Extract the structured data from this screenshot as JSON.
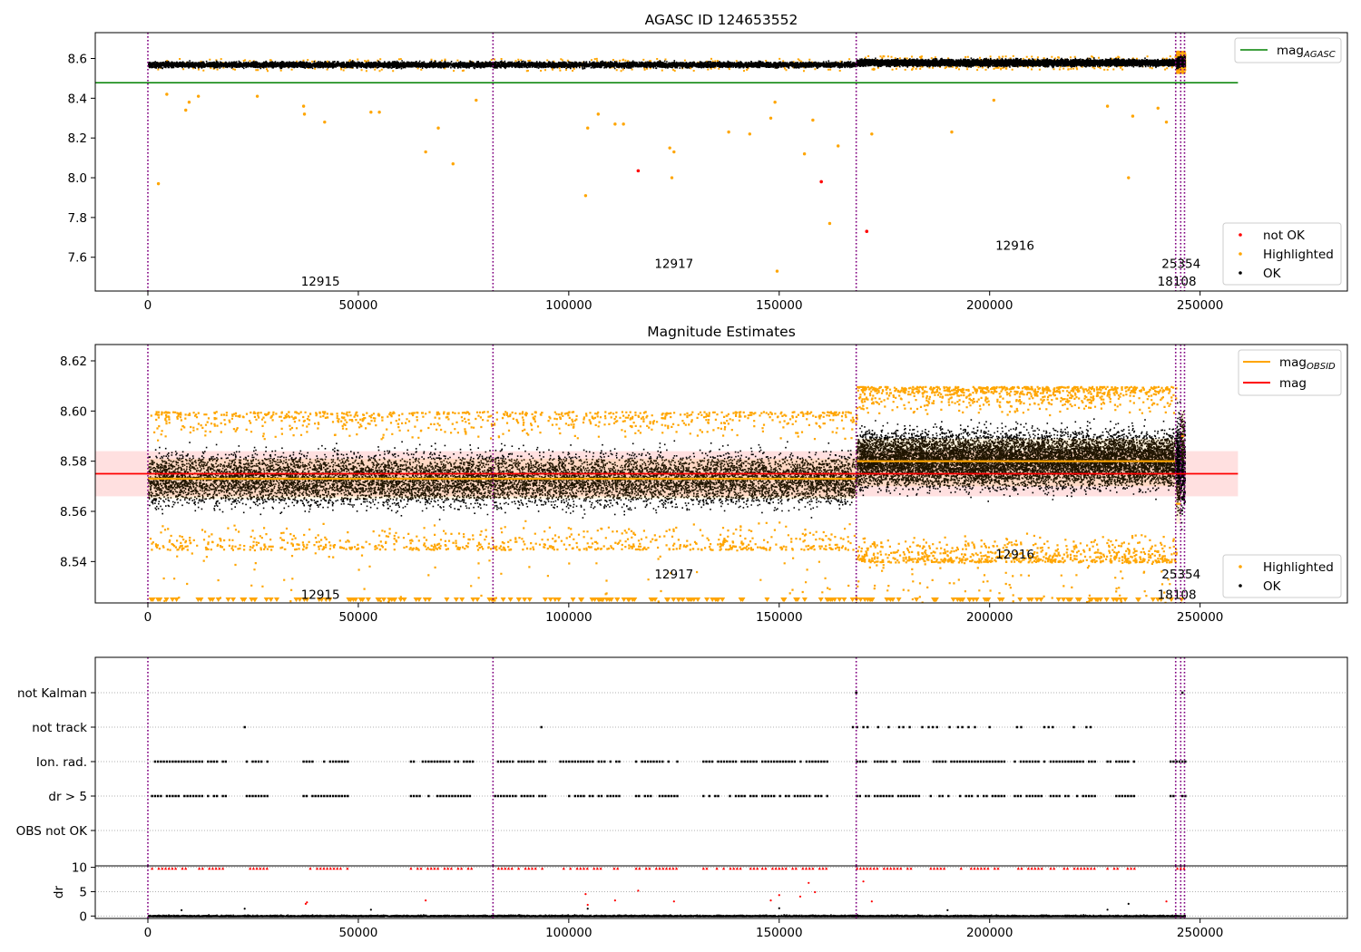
{
  "chart_data": [
    {
      "id": "top",
      "type": "scatter",
      "title": "AGASC ID 124653552",
      "xlabel": "",
      "ylabel": "",
      "xlim": [
        -12500,
        285000
      ],
      "ylim": [
        7.43,
        8.73
      ],
      "xticks": [
        0,
        50000,
        100000,
        150000,
        200000,
        250000
      ],
      "yticks": [
        7.6,
        7.8,
        8.0,
        8.2,
        8.4,
        8.6
      ],
      "ytick_labels": [
        "7.6",
        "7.8",
        "8.0",
        "8.2",
        "8.4",
        "8.6"
      ],
      "obs_boundaries": [
        0,
        82000,
        168300,
        244200,
        245400,
        246300
      ],
      "obs_labels": [
        {
          "text": "12915",
          "x": 41000,
          "y": 7.48
        },
        {
          "text": "12917",
          "x": 125000,
          "y": 7.57
        },
        {
          "text": "12916",
          "x": 206000,
          "y": 7.66
        },
        {
          "text": "25354",
          "x": 245500,
          "y": 7.57
        },
        {
          "text": "18108",
          "x": 244500,
          "y": 7.48
        }
      ],
      "agasc_mag": {
        "value": 8.478,
        "x_range": [
          -12500,
          259000
        ]
      },
      "ok_band": [
        {
          "x": [
            0,
            168300
          ],
          "center": 8.572,
          "spread": 0.028
        },
        {
          "x": [
            168300,
            244200
          ],
          "center": 8.582,
          "spread": 0.032
        },
        {
          "x": [
            244200,
            246300
          ],
          "center": 8.585,
          "spread": 0.05
        }
      ],
      "highlighted_points": [
        [
          2500,
          7.97
        ],
        [
          4500,
          8.42
        ],
        [
          9000,
          8.34
        ],
        [
          9800,
          8.38
        ],
        [
          12000,
          8.41
        ],
        [
          26000,
          8.41
        ],
        [
          37000,
          8.36
        ],
        [
          37200,
          8.32
        ],
        [
          42000,
          8.28
        ],
        [
          53000,
          8.33
        ],
        [
          55000,
          8.33
        ],
        [
          66000,
          8.13
        ],
        [
          69000,
          8.25
        ],
        [
          72500,
          8.07
        ],
        [
          78000,
          8.39
        ],
        [
          104000,
          7.91
        ],
        [
          104500,
          8.25
        ],
        [
          107000,
          8.32
        ],
        [
          111000,
          8.27
        ],
        [
          113000,
          8.27
        ],
        [
          124000,
          8.15
        ],
        [
          124500,
          8.0
        ],
        [
          125000,
          8.13
        ],
        [
          138000,
          8.23
        ],
        [
          143000,
          8.22
        ],
        [
          148000,
          8.3
        ],
        [
          149000,
          8.38
        ],
        [
          149500,
          7.53
        ],
        [
          156000,
          8.12
        ],
        [
          158000,
          8.29
        ],
        [
          162000,
          7.77
        ],
        [
          164000,
          8.16
        ],
        [
          172000,
          8.22
        ],
        [
          191000,
          8.23
        ],
        [
          201000,
          8.39
        ],
        [
          228000,
          8.36
        ],
        [
          233000,
          8.0
        ],
        [
          234000,
          8.31
        ],
        [
          240000,
          8.35
        ],
        [
          242000,
          8.28
        ]
      ],
      "not_ok_points": [
        [
          116500,
          8.035
        ],
        [
          160000,
          7.98
        ],
        [
          170800,
          7.73
        ]
      ],
      "legend_lines": [
        {
          "label": "mag",
          "subscript": "AGASC",
          "color": "#008000"
        }
      ],
      "legend_markers": [
        {
          "label": "not OK",
          "color": "#ff0000"
        },
        {
          "label": "Highlighted",
          "color": "#ffa500"
        },
        {
          "label": "OK",
          "color": "#000000"
        }
      ]
    },
    {
      "id": "mid",
      "type": "scatter",
      "title": "Magnitude Estimates",
      "xlabel": "",
      "ylabel": "",
      "xlim": [
        -12500,
        285000
      ],
      "ylim": [
        8.5235,
        8.6265
      ],
      "xticks": [
        0,
        50000,
        100000,
        150000,
        200000,
        250000
      ],
      "yticks": [
        8.54,
        8.56,
        8.58,
        8.6,
        8.62
      ],
      "ytick_labels": [
        "8.54",
        "8.56",
        "8.58",
        "8.60",
        "8.62"
      ],
      "obs_boundaries": [
        0,
        82000,
        168300,
        244200,
        245400,
        246300
      ],
      "obs_labels": [
        {
          "text": "12915",
          "x": 41000,
          "y": 8.527
        },
        {
          "text": "12917",
          "x": 125000,
          "y": 8.535
        },
        {
          "text": "12916",
          "x": 206000,
          "y": 8.543
        },
        {
          "text": "25354",
          "x": 245500,
          "y": 8.535
        },
        {
          "text": "18108",
          "x": 244500,
          "y": 8.527
        }
      ],
      "mag": {
        "value": 8.575,
        "band": [
          8.566,
          8.584
        ],
        "x_range": [
          -12500,
          259000
        ]
      },
      "obsid_mag": [
        {
          "x": [
            0,
            82000
          ],
          "value": 8.573,
          "band": [
            8.565,
            8.581
          ]
        },
        {
          "x": [
            82000,
            168300
          ],
          "value": 8.573,
          "band": [
            8.565,
            8.581
          ]
        },
        {
          "x": [
            168300,
            244200
          ],
          "value": 8.58,
          "band": [
            8.57,
            8.589
          ]
        },
        {
          "x": [
            244200,
            245400
          ],
          "value": 8.563,
          "band": [
            8.555,
            8.571
          ]
        },
        {
          "x": [
            245400,
            246300
          ],
          "value": 8.59,
          "band": [
            8.58,
            8.6
          ]
        }
      ],
      "ok_band": [
        {
          "x": [
            0,
            168300
          ],
          "center": 8.573,
          "spread": 0.021
        },
        {
          "x": [
            168300,
            244200
          ],
          "center": 8.581,
          "spread": 0.022
        },
        {
          "x": [
            244200,
            246300
          ],
          "center": 8.58,
          "spread": 0.037
        }
      ],
      "highlighted_spread": [
        {
          "x": [
            0,
            168300
          ],
          "lo": 8.545,
          "hi": 8.6
        },
        {
          "x": [
            168300,
            244200
          ],
          "lo": 8.54,
          "hi": 8.61
        }
      ],
      "legend_lines": [
        {
          "label": "mag",
          "subscript": "OBSID",
          "color": "#ffa500"
        },
        {
          "label": "mag",
          "subscript": "",
          "color": "#ff0000"
        }
      ],
      "legend_markers": [
        {
          "label": "Highlighted",
          "color": "#ffa500"
        },
        {
          "label": "OK",
          "color": "#000000"
        }
      ]
    },
    {
      "id": "flags",
      "type": "scatter",
      "xlabel": "",
      "ylabel": "",
      "xlim": [
        -12500,
        285000
      ],
      "categories": [
        "not Kalman",
        "not track",
        "Ion. rad.",
        "dr > 5",
        "OBS not OK"
      ],
      "obs_boundaries": [
        0,
        82000,
        168300,
        244200,
        245400,
        246300
      ],
      "flag_rows": [
        {
          "category": "not Kalman",
          "x": [
            168300,
            245800
          ]
        },
        {
          "category": "not track",
          "x": [
            23000,
            93500,
            167500,
            168500,
            170000,
            171000,
            173500,
            176000,
            178500,
            179500,
            181000,
            184000,
            185500,
            186500,
            187500,
            190500,
            192500,
            193500,
            195000,
            196500,
            200000,
            206500,
            207500,
            213000,
            214000,
            215000,
            220000,
            223000,
            224000
          ]
        },
        {
          "category": "Ion. rad.",
          "segments": [
            [
              1000,
              18500
            ],
            [
              23500,
              29000
            ],
            [
              37000,
              47500
            ],
            [
              62500,
              77500
            ],
            [
              82500,
              95000
            ],
            [
              98000,
              112000
            ],
            [
              116000,
              126000
            ],
            [
              132000,
              145000
            ],
            [
              146000,
              162000
            ],
            [
              168500,
              183500
            ],
            [
              186000,
              203500
            ],
            [
              206000,
              213000
            ],
            [
              214500,
              225500
            ],
            [
              228000,
              234500
            ],
            [
              243000,
              246500
            ]
          ]
        },
        {
          "category": "dr > 5",
          "segments": [
            [
              1000,
              18500
            ],
            [
              23500,
              29000
            ],
            [
              37000,
              47500
            ],
            [
              62500,
              77500
            ],
            [
              82500,
              95000
            ],
            [
              98000,
              112000
            ],
            [
              116000,
              126000
            ],
            [
              132000,
              145000
            ],
            [
              146000,
              162000
            ],
            [
              168500,
              183500
            ],
            [
              186000,
              203500
            ],
            [
              206000,
              213000
            ],
            [
              214500,
              225500
            ],
            [
              228000,
              234500
            ],
            [
              243000,
              246500
            ]
          ]
        }
      ]
    },
    {
      "id": "dr",
      "type": "scatter",
      "xlabel": "",
      "ylabel": "dr",
      "xlim": [
        -12500,
        285000
      ],
      "ylim": [
        -0.5,
        10.3
      ],
      "xticks": [
        0,
        50000,
        100000,
        150000,
        200000,
        250000
      ],
      "yticks": [
        0,
        5,
        10
      ],
      "ytick_labels": [
        "0",
        "5",
        "10"
      ],
      "obs_boundaries": [
        0,
        82000,
        168300,
        244200,
        245400,
        246300
      ],
      "clipped_segments": [
        [
          1000,
          18500
        ],
        [
          23500,
          29000
        ],
        [
          37000,
          47500
        ],
        [
          62500,
          77500
        ],
        [
          82500,
          95000
        ],
        [
          98000,
          112000
        ],
        [
          116000,
          126000
        ],
        [
          132000,
          145000
        ],
        [
          146000,
          162000
        ],
        [
          168500,
          183500
        ],
        [
          186000,
          203500
        ],
        [
          206000,
          213000
        ],
        [
          214500,
          225500
        ],
        [
          228000,
          234500
        ],
        [
          243000,
          246500
        ]
      ],
      "red_points": [
        [
          37500,
          2.5
        ],
        [
          37800,
          2.8
        ],
        [
          66000,
          3.2
        ],
        [
          104000,
          4.5
        ],
        [
          104500,
          2.3
        ],
        [
          111000,
          3.2
        ],
        [
          116500,
          5.2
        ],
        [
          125000,
          3.0
        ],
        [
          148000,
          3.2
        ],
        [
          150000,
          4.3
        ],
        [
          155000,
          4.0
        ],
        [
          157000,
          6.8
        ],
        [
          158500,
          4.9
        ],
        [
          170000,
          7.1
        ],
        [
          172000,
          3.0
        ],
        [
          242000,
          3.0
        ]
      ],
      "black_points": [
        [
          8000,
          1.2
        ],
        [
          23000,
          1.5
        ],
        [
          53000,
          1.3
        ],
        [
          104500,
          1.5
        ],
        [
          150000,
          1.6
        ],
        [
          190000,
          1.2
        ],
        [
          228000,
          1.3
        ],
        [
          233000,
          2.5
        ]
      ]
    }
  ]
}
